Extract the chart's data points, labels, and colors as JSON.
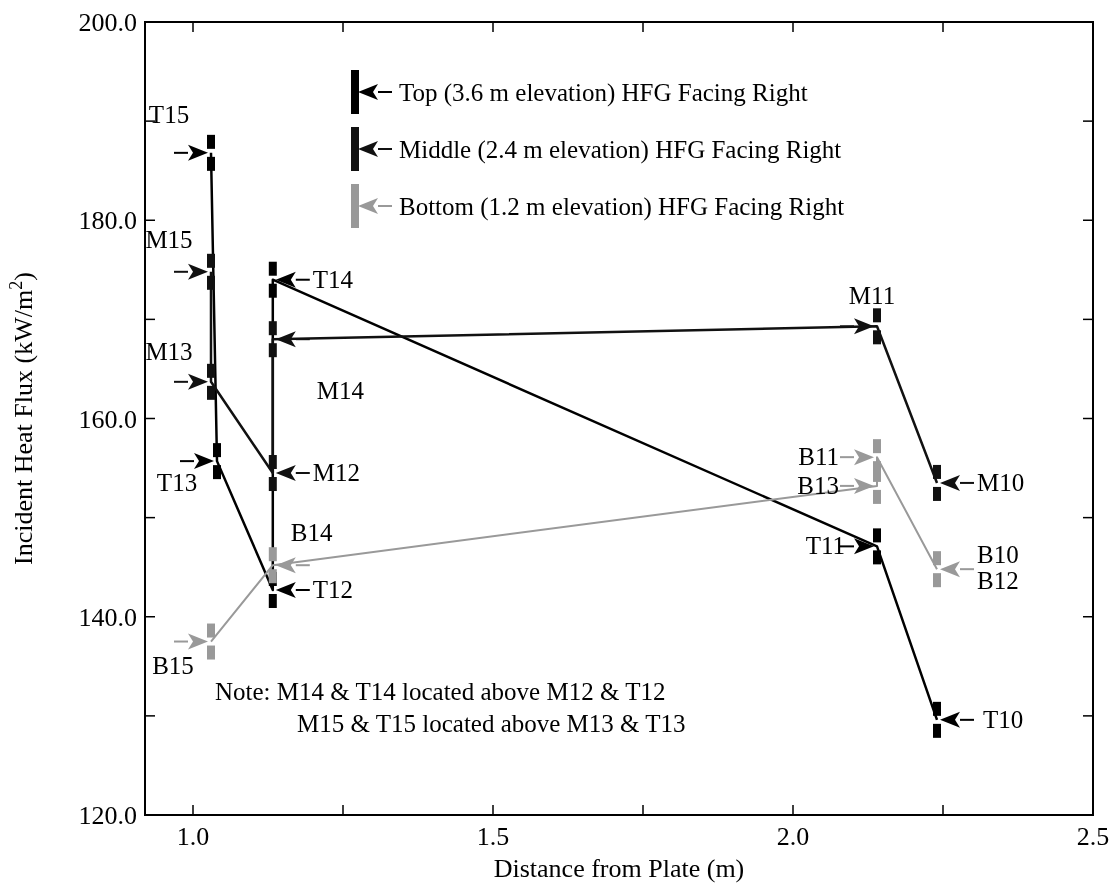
{
  "chart_data": {
    "type": "line",
    "xlabel": "Distance from Plate (m)",
    "ylabel": "Incident Heat Flux (kW/m$^{2}$)",
    "xlim": [
      0.92,
      2.5
    ],
    "xticks": [
      {
        "value": 1.0,
        "label": "1.0"
      },
      {
        "value": 1.25,
        "label": null
      },
      {
        "value": 1.5,
        "label": "1.5"
      },
      {
        "value": 1.75,
        "label": null
      },
      {
        "value": 2.0,
        "label": "2.0"
      },
      {
        "value": 2.25,
        "label": null
      },
      {
        "value": 2.5,
        "label": "2.5"
      }
    ],
    "ylim": [
      120,
      200
    ],
    "yticks": [
      {
        "value": 120,
        "label": "120.0"
      },
      {
        "value": 130,
        "label": null
      },
      {
        "value": 140,
        "label": "140.0"
      },
      {
        "value": 150,
        "label": null
      },
      {
        "value": 160,
        "label": "160.0"
      },
      {
        "value": 170,
        "label": null
      },
      {
        "value": 180,
        "label": "180.0"
      },
      {
        "value": 190,
        "label": null
      },
      {
        "value": 200,
        "label": "200.0"
      }
    ],
    "legend": "top right",
    "grid": false,
    "line_style": "solid",
    "series": [
      {
        "name": "Top (3.6 m elevation) HFG Facing Right",
        "color": "#000000",
        "x": [
          1.03,
          1.04,
          1.133,
          1.133,
          2.14,
          2.24
        ],
        "values": [
          186.8,
          155.7,
          142.7,
          174.0,
          147.1,
          129.6
        ]
      },
      {
        "name": "Middle (2.4 m elevation) HFG Facing Right",
        "color": "#111111",
        "x": [
          1.03,
          1.03,
          1.133,
          1.133,
          2.14,
          2.24
        ],
        "values": [
          174.8,
          163.7,
          154.5,
          168.0,
          169.3,
          153.5
        ]
      },
      {
        "name": "Bottom (1.2 m elevation) HFG Facing Right",
        "color": "#999999",
        "x": [
          1.03,
          1.133,
          2.14,
          2.14,
          2.24
        ],
        "values": [
          137.5,
          145.2,
          153.2,
          156.1,
          144.8
        ]
      }
    ],
    "annotations": [
      {
        "text": "T15",
        "x": 1.03,
        "y": 186.8
      },
      {
        "text": "M15",
        "x": 1.03,
        "y": 174.8
      },
      {
        "text": "M13",
        "x": 1.03,
        "y": 163.7
      },
      {
        "text": "T13",
        "x": 1.04,
        "y": 155.7
      },
      {
        "text": "B15",
        "x": 1.03,
        "y": 137.5
      },
      {
        "text": "T14",
        "x": 1.133,
        "y": 174.0
      },
      {
        "text": "M14",
        "x": 1.133,
        "y": 168.0
      },
      {
        "text": "M12",
        "x": 1.133,
        "y": 154.5
      },
      {
        "text": "B14",
        "x": 1.133,
        "y": 145.2
      },
      {
        "text": "T12",
        "x": 1.133,
        "y": 142.7
      },
      {
        "text": "M11",
        "x": 2.14,
        "y": 169.3
      },
      {
        "text": "T11",
        "x": 2.14,
        "y": 147.1
      },
      {
        "text": "B11",
        "x": 2.14,
        "y": 156.1
      },
      {
        "text": "B13",
        "x": 2.14,
        "y": 153.2
      },
      {
        "text": "M10",
        "x": 2.24,
        "y": 153.5
      },
      {
        "text": "B10",
        "x": 2.24,
        "y": 144.8
      },
      {
        "text": "B12",
        "x": 2.24,
        "y": 144.8
      },
      {
        "text": "T10",
        "x": 2.24,
        "y": 129.6
      },
      "Note: M14 & T14 located above M12 & T12",
      "M15 & T15 located above M13 & T13"
    ]
  }
}
